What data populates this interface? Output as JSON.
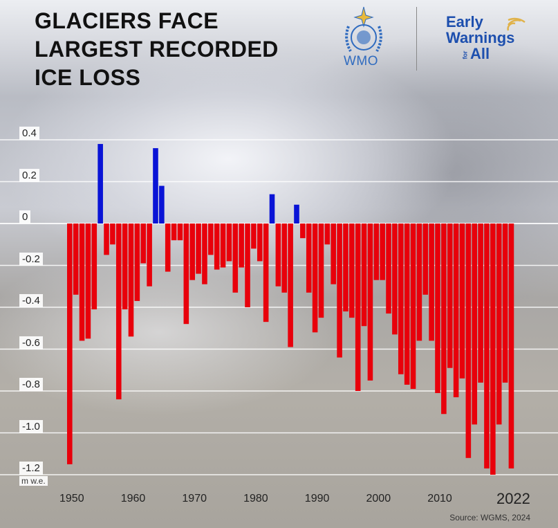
{
  "title": [
    "GLACIERS FACE",
    "LARGEST RECORDED",
    "ICE LOSS"
  ],
  "logos": {
    "wmo": "WMO",
    "ewa_line1": "Early",
    "ewa_line2": "Warnings",
    "ewa_for": "for",
    "ewa_all": "All"
  },
  "source": "Source: WGMS, 2024",
  "colors": {
    "gain": "#0a14d6",
    "loss": "#e8000b"
  },
  "chart_data": {
    "type": "bar",
    "title": "Glaciers face largest recorded ice loss",
    "ylabel": "m w.e.",
    "xlabel": "",
    "ylim": [
      -1.2,
      0.4
    ],
    "yticks": [
      "0.4",
      "0.2",
      "0",
      "-0.2",
      "-0.4",
      "-0.6",
      "-0.8",
      "-1.0",
      "-1.2"
    ],
    "ytick_values": [
      0.4,
      0.2,
      0,
      -0.2,
      -0.4,
      -0.6,
      -0.8,
      -1.0,
      -1.2
    ],
    "xticks": [
      "1950",
      "1960",
      "1970",
      "1980",
      "1990",
      "2000",
      "2010",
      "2022"
    ],
    "xtick_values": [
      1950,
      1960,
      1970,
      1980,
      1990,
      2000,
      2010,
      2022
    ],
    "grid": true,
    "start_year": 1950,
    "end_year": 2022,
    "values": [
      -1.15,
      -0.34,
      -0.56,
      -0.55,
      -0.41,
      0.38,
      -0.15,
      -0.1,
      -0.84,
      -0.41,
      -0.54,
      -0.37,
      -0.19,
      -0.3,
      0.36,
      0.18,
      -0.23,
      -0.08,
      -0.08,
      -0.48,
      -0.27,
      -0.24,
      -0.29,
      -0.15,
      -0.22,
      -0.21,
      -0.18,
      -0.33,
      -0.21,
      -0.4,
      -0.12,
      -0.18,
      -0.47,
      0.14,
      -0.3,
      -0.33,
      -0.59,
      0.09,
      -0.07,
      -0.33,
      -0.52,
      -0.45,
      -0.1,
      -0.29,
      -0.64,
      -0.42,
      -0.45,
      -0.8,
      -0.49,
      -0.75,
      -0.27,
      -0.27,
      -0.43,
      -0.53,
      -0.72,
      -0.77,
      -0.79,
      -0.56,
      -0.34,
      -0.56,
      -0.81,
      -0.91,
      -0.69,
      -0.83,
      -0.74,
      -1.12,
      -0.96,
      -0.76,
      -1.17,
      -1.2,
      -0.96,
      -0.76,
      -1.17
    ]
  }
}
